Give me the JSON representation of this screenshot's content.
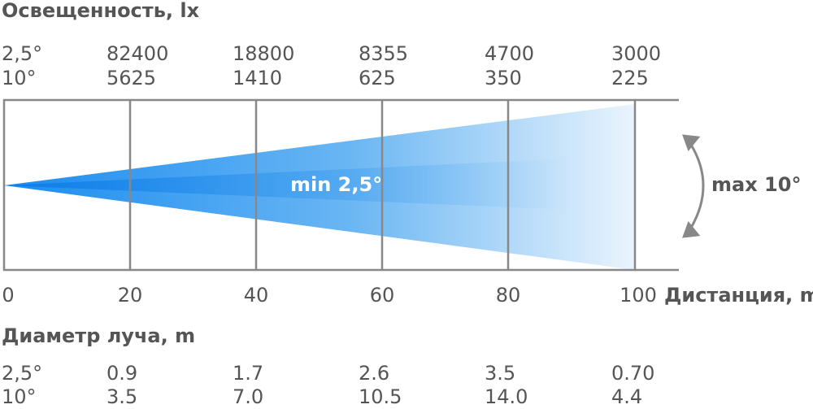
{
  "illuminance": {
    "title": "Освещенность, lx",
    "rows": [
      {
        "label": "2,5°",
        "values": [
          "82400",
          "18800",
          "8355",
          "4700",
          "3000"
        ]
      },
      {
        "label": "10°",
        "values": [
          "5625",
          "1410",
          "625",
          "350",
          "225"
        ]
      }
    ]
  },
  "distance": {
    "ticks": [
      "0",
      "20",
      "40",
      "60",
      "80",
      "100"
    ],
    "label": "Дистанция, m"
  },
  "beam": {
    "min_label": "min 2,5°",
    "max_label": "max 10°"
  },
  "diameter": {
    "title": "Диаметр луча, m",
    "rows": [
      {
        "label": "2,5°",
        "values": [
          "0.9",
          "1.7",
          "2.6",
          "3.5",
          "0.70"
        ]
      },
      {
        "label": "10°",
        "values": [
          "3.5",
          "7.0",
          "10.5",
          "14.0",
          "4.4"
        ]
      }
    ]
  }
}
